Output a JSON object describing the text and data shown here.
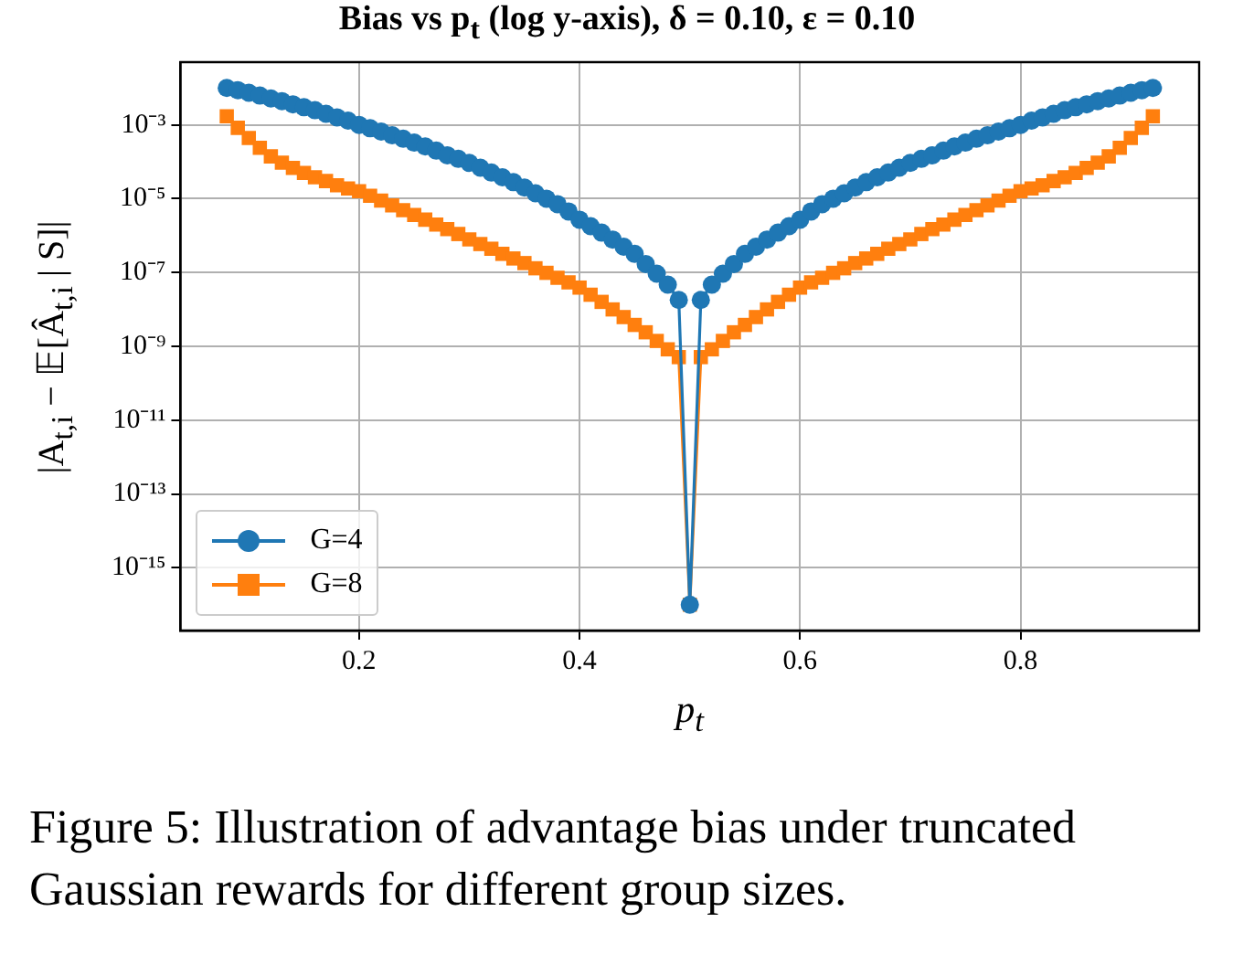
{
  "chart_data": {
    "type": "line",
    "title": "Bias vs p$_{t}$ (log y-axis), δ = 0.10, ε = 0.10",
    "xlabel": "p$_{t}$",
    "ylabel": "|A$_{t,i}$ − 𝔼[Â$_{t,i}$ | S]|",
    "annotations": [
      "Figure 5: Illustration of advantage bias under truncated Gaussian rewards for different group sizes."
    ],
    "x": [
      0.08,
      0.09,
      0.1,
      0.11,
      0.12,
      0.13,
      0.14,
      0.15,
      0.16,
      0.17,
      0.18,
      0.19,
      0.2,
      0.21,
      0.22,
      0.23,
      0.24,
      0.25,
      0.26,
      0.27,
      0.28,
      0.29,
      0.3,
      0.31,
      0.32,
      0.33,
      0.34,
      0.35,
      0.36,
      0.37,
      0.38,
      0.39,
      0.4,
      0.41,
      0.42,
      0.43,
      0.44,
      0.45,
      0.46,
      0.47,
      0.48,
      0.49,
      0.5,
      0.51,
      0.52,
      0.53,
      0.54,
      0.55,
      0.56,
      0.57,
      0.58,
      0.59,
      0.6,
      0.61,
      0.62,
      0.63,
      0.64,
      0.65,
      0.66,
      0.67,
      0.68,
      0.69,
      0.7,
      0.71,
      0.72,
      0.73,
      0.74,
      0.75,
      0.76,
      0.77,
      0.78,
      0.79,
      0.8,
      0.81,
      0.82,
      0.83,
      0.84,
      0.85,
      0.86,
      0.87,
      0.88,
      0.89,
      0.9,
      0.91,
      0.92
    ],
    "series": [
      {
        "name": "G=4",
        "color": "#1f77b4",
        "marker": "circle",
        "values": [
          0.01,
          0.0087,
          0.0074,
          0.0062,
          0.0052,
          0.0044,
          0.0036,
          0.003,
          0.0025,
          0.002,
          0.0016,
          0.0013,
          0.001,
          0.00081,
          0.00066,
          0.00052,
          0.00042,
          0.00033,
          0.00026,
          0.0002,
          0.00015,
          0.00012,
          9.3e-05,
          6.9e-05,
          5.1e-05,
          3.8e-05,
          2.8e-05,
          2e-05,
          1.4e-05,
          1e-05,
          7.1e-06,
          4.5e-06,
          2.7e-06,
          1.8e-06,
          1.2e-06,
          7.8e-07,
          5e-07,
          3.2e-07,
          1.7e-07,
          9.3e-08,
          4.7e-08,
          1.8e-08,
          1e-16,
          1.8e-08,
          4.7e-08,
          9.3e-08,
          1.7e-07,
          3.2e-07,
          5e-07,
          7.8e-07,
          1.2e-06,
          1.8e-06,
          2.7e-06,
          4.5e-06,
          7.1e-06,
          1e-05,
          1.4e-05,
          2e-05,
          2.8e-05,
          3.8e-05,
          5.1e-05,
          6.9e-05,
          9.3e-05,
          0.00012,
          0.00015,
          0.0002,
          0.00026,
          0.00033,
          0.00042,
          0.00052,
          0.00066,
          0.00081,
          0.001,
          0.0013,
          0.0016,
          0.002,
          0.0025,
          0.003,
          0.0036,
          0.0044,
          0.0052,
          0.0062,
          0.0074,
          0.0087,
          0.01
        ]
      },
      {
        "name": "G=8",
        "color": "#ff7f0e",
        "marker": "square",
        "values": [
          0.0017,
          0.00083,
          0.00044,
          0.00024,
          0.00014,
          9.5e-05,
          6.8e-05,
          5e-05,
          3.8e-05,
          3e-05,
          2.3e-05,
          1.9e-05,
          1.6e-05,
          1.2e-05,
          8.9e-06,
          6.6e-06,
          4.9e-06,
          3.6e-06,
          2.7e-06,
          2e-06,
          1.5e-06,
          1.1e-06,
          7.9e-07,
          5.9e-07,
          4.4e-07,
          3.2e-07,
          2.4e-07,
          1.8e-07,
          1.3e-07,
          9.8e-08,
          7.2e-08,
          5.4e-08,
          3.9e-08,
          2.5e-08,
          1.6e-08,
          1e-08,
          6.2e-09,
          3.8e-09,
          2.4e-09,
          1.4e-09,
          8.3e-10,
          5.1e-10,
          1e-16,
          5.1e-10,
          8.3e-10,
          1.4e-09,
          2.4e-09,
          3.8e-09,
          6.2e-09,
          1e-08,
          1.6e-08,
          2.5e-08,
          3.9e-08,
          5.4e-08,
          7.2e-08,
          9.8e-08,
          1.3e-07,
          1.8e-07,
          2.4e-07,
          3.2e-07,
          4.4e-07,
          5.9e-07,
          7.9e-07,
          1.1e-06,
          1.5e-06,
          2e-06,
          2.7e-06,
          3.6e-06,
          4.9e-06,
          6.6e-06,
          8.9e-06,
          1.2e-05,
          1.6e-05,
          1.9e-05,
          2.3e-05,
          3e-05,
          3.8e-05,
          5e-05,
          6.8e-05,
          9.5e-05,
          0.00014,
          0.00024,
          0.00044,
          0.00083,
          0.0017
        ]
      }
    ],
    "xlim": [
      0.038,
      0.962
    ],
    "xticks": [
      0.2,
      0.4,
      0.6,
      0.8
    ],
    "ylim": [
      2e-17,
      0.05
    ],
    "yticks": [
      {
        "value": 0.001,
        "label": "10⁻³"
      },
      {
        "value": 1e-05,
        "label": "10⁻⁵"
      },
      {
        "value": 1e-07,
        "label": "10⁻⁷"
      },
      {
        "value": 1e-09,
        "label": "10⁻⁹"
      },
      {
        "value": 1e-11,
        "label": "10⁻¹¹"
      },
      {
        "value": 1e-13,
        "label": "10⁻¹³"
      },
      {
        "value": 1e-15,
        "label": "10⁻¹⁵"
      }
    ],
    "log": "y",
    "grid": true,
    "legend": "bottom left"
  }
}
